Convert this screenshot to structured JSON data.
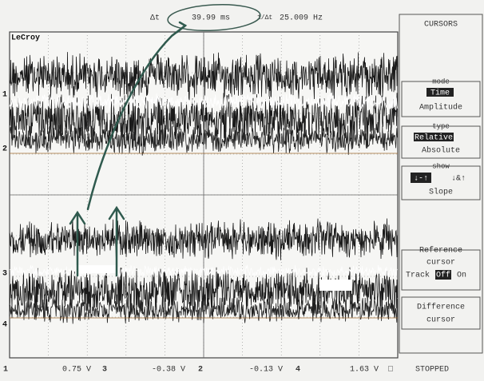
{
  "readout": {
    "delta_t_label": "Δt",
    "delta_t": "39.99 ms",
    "inv_label": "1/Δt",
    "freq": "25.009 Hz"
  },
  "brand": "LeCroy",
  "menu": {
    "title": "CURSORS",
    "mode": {
      "label": "mode",
      "options": [
        "Time",
        "Amplitude"
      ]
    },
    "type": {
      "label": "type",
      "options": [
        "Relative",
        "Absolute"
      ]
    },
    "show": {
      "label": "show",
      "options": [
        "↓-↑",
        "↓&↑"
      ],
      "extra": "Slope"
    },
    "reference": {
      "label": "Reference",
      "line2": "cursor",
      "track": "Track",
      "options": [
        "Off",
        "On"
      ]
    },
    "difference": {
      "label": "Difference",
      "line2": "cursor"
    }
  },
  "channel_markers": [
    "1",
    "2",
    "3",
    "4"
  ],
  "status": {
    "marker": "1",
    "ch3_value": "0.75 V",
    "ch3": "3",
    "ch2_value": "-0.38 V",
    "ch2": "2",
    "ch4_value": "-0.13 V",
    "ch4": "4",
    "ch1_value": "1.63 V",
    "ch1_icon": "□",
    "state": "STOPPED"
  }
}
